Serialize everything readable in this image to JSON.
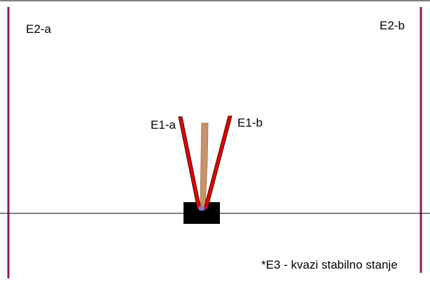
{
  "labels": {
    "e2a": "E2-a",
    "e2b": "E2-b",
    "e1a": "E1-a",
    "e1b": "E1-b",
    "note": "*E3 - kvazi stabilno stanje"
  },
  "colors": {
    "boundary": "#8b1a66",
    "arm_fill": "#e60000",
    "arm_stroke": "#4a0000",
    "pendulum": "#c8926a",
    "cart": "#000000",
    "track": "#000000",
    "pivot": "#7a7ad0",
    "frame": "#000000"
  }
}
